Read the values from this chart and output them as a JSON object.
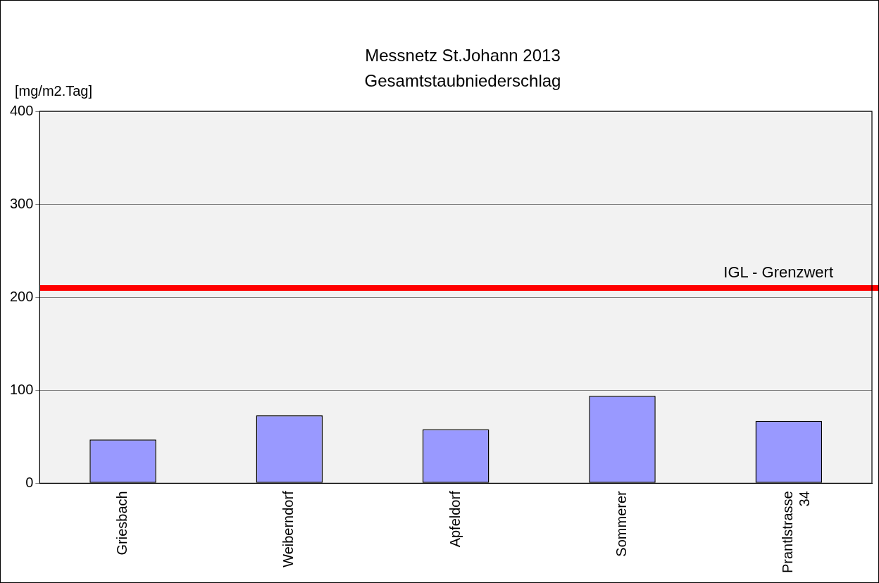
{
  "chart_data": {
    "type": "bar",
    "title": "Messnetz St.Johann 2013",
    "subtitle": "Gesamtstaubniederschlag",
    "ylabel": "[mg/m2.Tag]",
    "categories": [
      "Griesbach",
      "Weiberndorf",
      "Apfeldorf",
      "Sommerer",
      "Prantlstrasse 34"
    ],
    "values": [
      47,
      73,
      58,
      94,
      67
    ],
    "color": "#9999ff",
    "ylim": [
      0,
      400
    ],
    "yticks": [
      0,
      100,
      200,
      300,
      400
    ],
    "grid": "y",
    "legend": false,
    "ref_lines": [
      {
        "axis": "y",
        "value": 210,
        "label": "IGL - Grenzwert",
        "color": "#ff0000"
      }
    ]
  }
}
